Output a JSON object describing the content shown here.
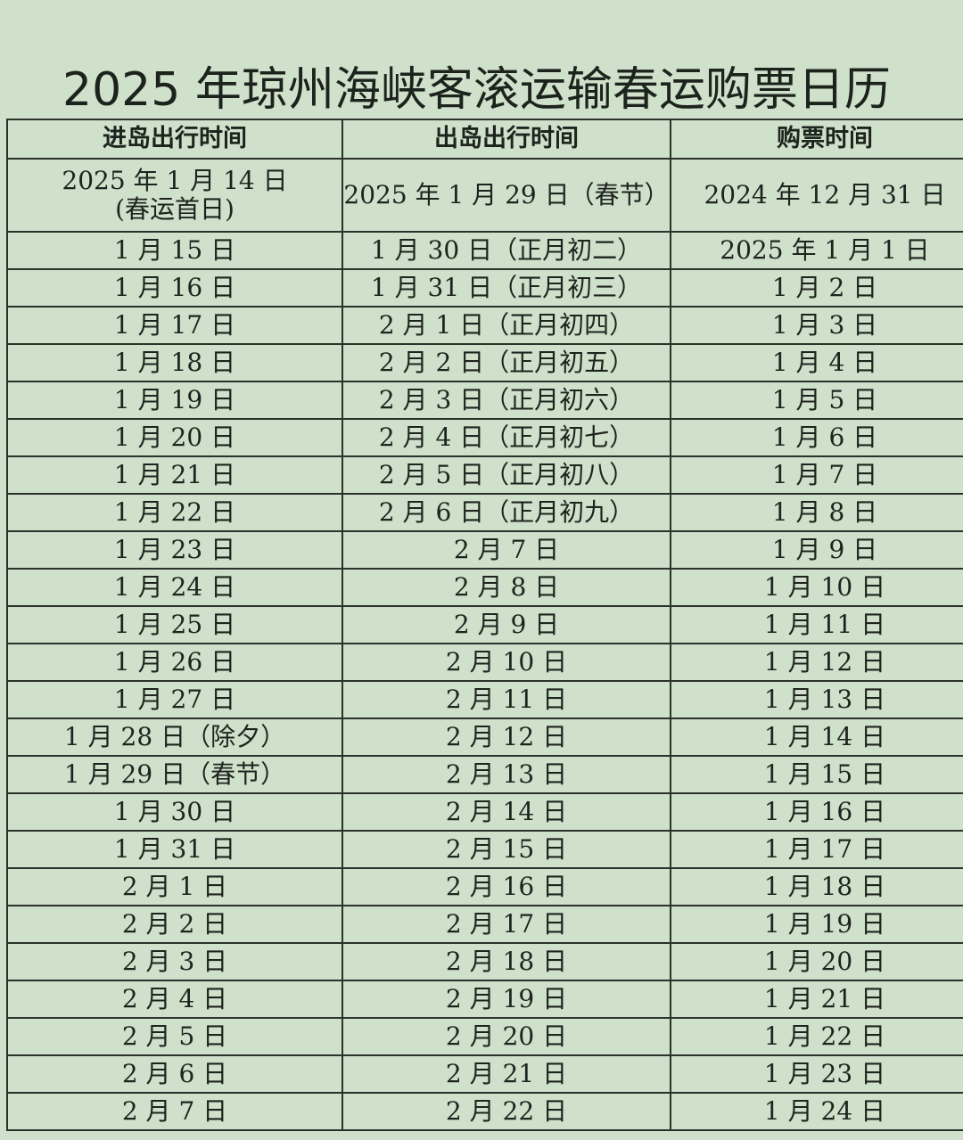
{
  "title": "2025 年琼州海峡客滚运输春运购票日历",
  "headers": [
    "进岛出行时间",
    "出岛出行时间",
    "购票时间"
  ],
  "rows": [
    [
      "2025 年 1 月 14 日\n(春运首日)",
      "2025 年 1 月 29 日（春节）",
      "2024 年 12 月 31 日"
    ],
    [
      "1 月 15 日",
      "1 月 30 日（正月初二）",
      "2025 年 1 月 1 日"
    ],
    [
      "1 月 16 日",
      "1 月 31 日（正月初三）",
      "1 月 2 日"
    ],
    [
      "1 月 17 日",
      "2 月 1 日（正月初四）",
      "1 月 3 日"
    ],
    [
      "1 月 18 日",
      "2 月 2 日（正月初五）",
      "1 月 4 日"
    ],
    [
      "1 月 19 日",
      "2 月 3 日（正月初六）",
      "1 月 5 日"
    ],
    [
      "1 月 20 日",
      "2 月 4 日（正月初七）",
      "1 月 6 日"
    ],
    [
      "1 月 21 日",
      "2 月 5 日（正月初八）",
      "1 月 7 日"
    ],
    [
      "1 月 22 日",
      "2 月 6 日（正月初九）",
      "1 月 8 日"
    ],
    [
      "1 月 23 日",
      "2 月 7 日",
      "1 月 9 日"
    ],
    [
      "1 月 24 日",
      "2 月 8 日",
      "1 月 10 日"
    ],
    [
      "1 月 25 日",
      "2 月 9 日",
      "1 月 11 日"
    ],
    [
      "1 月 26 日",
      "2 月 10 日",
      "1 月 12 日"
    ],
    [
      "1 月 27 日",
      "2 月 11 日",
      "1 月 13 日"
    ],
    [
      "1 月 28 日（除夕）",
      "2 月 12 日",
      "1 月 14 日"
    ],
    [
      "1 月 29 日（春节）",
      "2 月 13 日",
      "1 月 15 日"
    ],
    [
      "1 月 30 日",
      "2 月 14 日",
      "1 月 16 日"
    ],
    [
      "1 月 31 日",
      "2 月 15 日",
      "1 月 17 日"
    ],
    [
      "2 月 1 日",
      "2 月 16 日",
      "1 月 18 日"
    ],
    [
      "2 月 2 日",
      "2 月 17 日",
      "1 月 19 日"
    ],
    [
      "2 月 3 日",
      "2 月 18 日",
      "1 月 20 日"
    ],
    [
      "2 月 4 日",
      "2 月 19 日",
      "1 月 21 日"
    ],
    [
      "2 月 5 日",
      "2 月 20 日",
      "1 月 22 日"
    ],
    [
      "2 月 6 日",
      "2 月 21 日",
      "1 月 23 日"
    ],
    [
      "2 月 7 日",
      "2 月 22 日",
      "1 月 24 日"
    ]
  ]
}
